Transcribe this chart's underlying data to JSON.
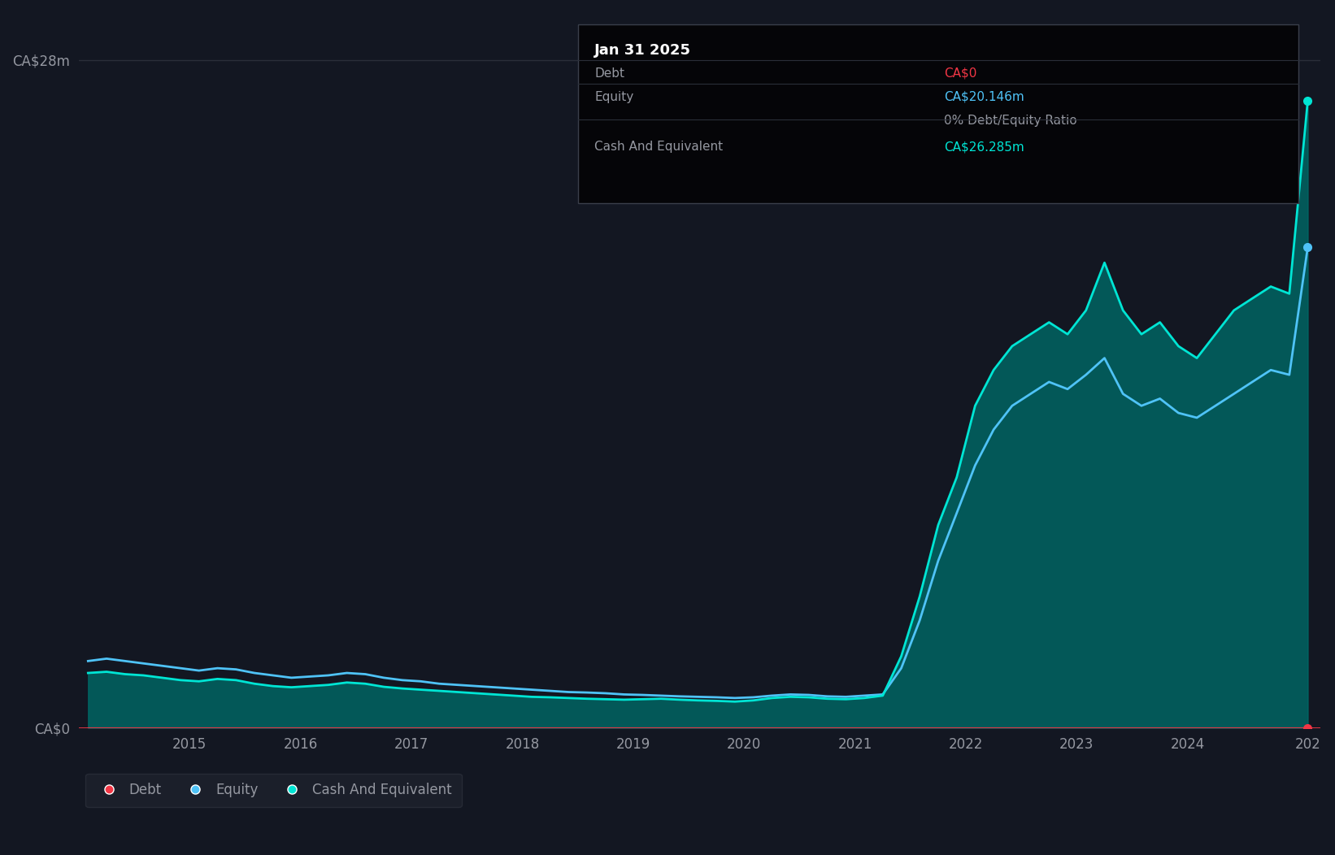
{
  "bg_color": "#131722",
  "plot_bg_color": "#131722",
  "grid_color": "#2a2e39",
  "title_color": "#ffffff",
  "axis_label_color": "#9598a1",
  "debt_color": "#f23645",
  "equity_color": "#4fc3f7",
  "cash_color": "#00e5d4",
  "cash_fill_color": "#00897b",
  "years": [
    2014.083,
    2014.25,
    2014.417,
    2014.583,
    2014.75,
    2014.917,
    2015.083,
    2015.25,
    2015.417,
    2015.583,
    2015.75,
    2015.917,
    2016.083,
    2016.25,
    2016.417,
    2016.583,
    2016.75,
    2016.917,
    2017.083,
    2017.25,
    2017.417,
    2017.583,
    2017.75,
    2017.917,
    2018.083,
    2018.25,
    2018.417,
    2018.583,
    2018.75,
    2018.917,
    2019.083,
    2019.25,
    2019.417,
    2019.583,
    2019.75,
    2019.917,
    2020.083,
    2020.25,
    2020.417,
    2020.583,
    2020.75,
    2020.917,
    2021.083,
    2021.25,
    2021.417,
    2021.583,
    2021.75,
    2021.917,
    2022.083,
    2022.25,
    2022.417,
    2022.583,
    2022.75,
    2022.917,
    2023.083,
    2023.25,
    2023.417,
    2023.583,
    2023.75,
    2023.917,
    2024.083,
    2024.25,
    2024.417,
    2024.583,
    2024.75,
    2024.917,
    2025.083
  ],
  "debt": [
    0,
    0,
    0,
    0,
    0,
    0,
    0,
    0,
    0,
    0,
    0,
    0,
    0,
    0,
    0,
    0,
    0,
    0,
    0,
    0,
    0,
    0,
    0,
    0,
    0,
    0,
    0,
    0,
    0,
    0,
    0,
    0,
    0,
    0,
    0,
    0,
    0,
    0,
    0,
    0,
    0,
    0,
    0,
    0,
    0,
    0,
    0,
    0,
    0,
    0,
    0,
    0,
    0,
    0,
    0,
    0,
    0,
    0,
    0,
    0,
    0,
    0,
    0,
    0,
    0,
    0,
    0
  ],
  "equity": [
    2.8,
    2.9,
    2.8,
    2.7,
    2.6,
    2.5,
    2.4,
    2.5,
    2.45,
    2.3,
    2.2,
    2.1,
    2.15,
    2.2,
    2.3,
    2.25,
    2.1,
    2.0,
    1.95,
    1.85,
    1.8,
    1.75,
    1.7,
    1.65,
    1.6,
    1.55,
    1.5,
    1.48,
    1.45,
    1.4,
    1.38,
    1.35,
    1.32,
    1.3,
    1.28,
    1.25,
    1.28,
    1.35,
    1.4,
    1.38,
    1.32,
    1.3,
    1.35,
    1.4,
    2.5,
    4.5,
    7.0,
    9.0,
    11.0,
    12.5,
    13.5,
    14.0,
    14.5,
    14.2,
    14.8,
    15.5,
    14.0,
    13.5,
    13.8,
    13.2,
    13.0,
    13.5,
    14.0,
    14.5,
    15.0,
    14.8,
    20.146
  ],
  "cash": [
    2.3,
    2.35,
    2.25,
    2.2,
    2.1,
    2.0,
    1.95,
    2.05,
    2.0,
    1.85,
    1.75,
    1.7,
    1.75,
    1.8,
    1.9,
    1.85,
    1.72,
    1.65,
    1.6,
    1.55,
    1.5,
    1.45,
    1.4,
    1.35,
    1.3,
    1.28,
    1.25,
    1.22,
    1.2,
    1.18,
    1.2,
    1.22,
    1.18,
    1.15,
    1.13,
    1.1,
    1.15,
    1.25,
    1.3,
    1.28,
    1.22,
    1.2,
    1.25,
    1.35,
    3.0,
    5.5,
    8.5,
    10.5,
    13.5,
    15.0,
    16.0,
    16.5,
    17.0,
    16.5,
    17.5,
    19.5,
    17.5,
    16.5,
    17.0,
    16.0,
    15.5,
    16.5,
    17.5,
    18.0,
    18.5,
    18.2,
    26.285
  ],
  "xlim": [
    2014.0,
    2025.2
  ],
  "ylim": [
    0,
    30
  ],
  "ytick_labels": [
    "CA$0",
    "CA$28m"
  ],
  "ytick_vals": [
    0,
    28
  ],
  "xtick_labels": [
    "2015",
    "2016",
    "2017",
    "2018",
    "2019",
    "2020",
    "2021",
    "2022",
    "2023",
    "2024",
    "202"
  ],
  "xtick_vals": [
    2015,
    2016,
    2017,
    2018,
    2019,
    2020,
    2021,
    2022,
    2023,
    2024,
    2025.083
  ],
  "tooltip_x": 2025.083,
  "tooltip_title": "Jan 31 2025",
  "tooltip_debt_label": "Debt",
  "tooltip_debt_val": "CA$0",
  "tooltip_equity_label": "Equity",
  "tooltip_equity_val": "CA$20.146m",
  "tooltip_ratio_val": "0% Debt/Equity Ratio",
  "tooltip_cash_label": "Cash And Equivalent",
  "tooltip_cash_val": "CA$26.285m",
  "legend_items": [
    "Debt",
    "Equity",
    "Cash And Equivalent"
  ],
  "legend_colors": [
    "#f23645",
    "#4fc3f7",
    "#00e5d4"
  ]
}
